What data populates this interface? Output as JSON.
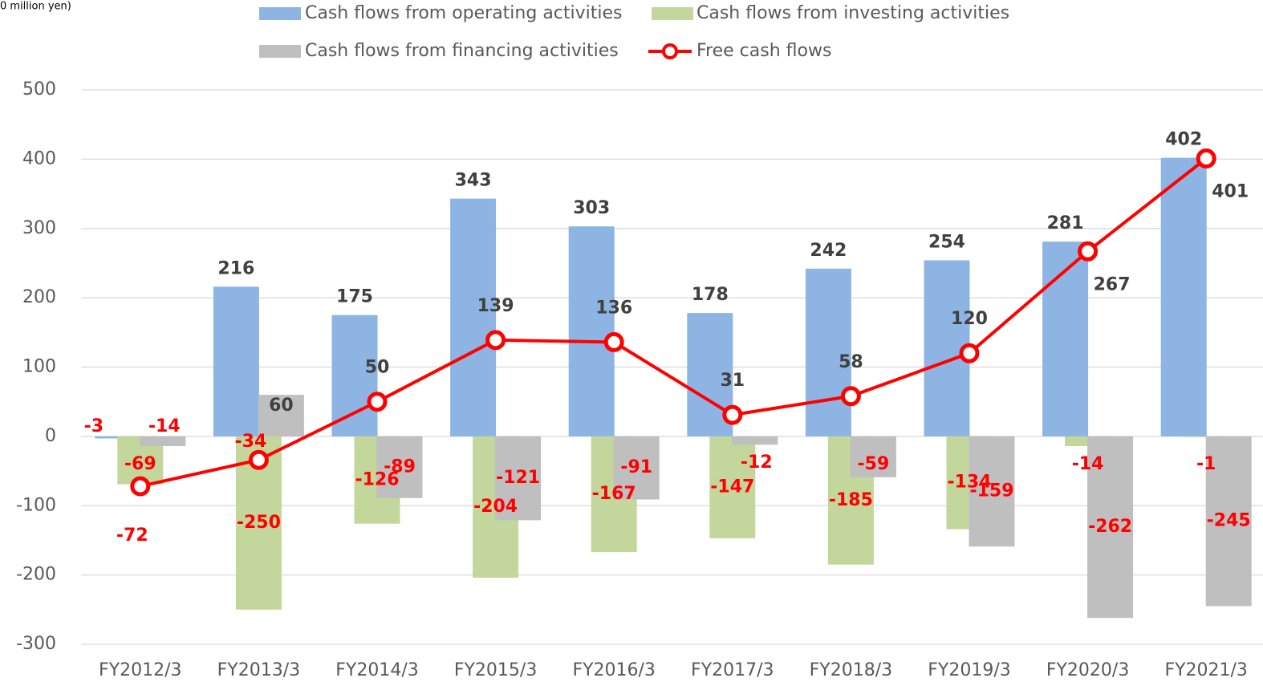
{
  "chart_data": {
    "type": "bar",
    "unit_label": "0 million yen)",
    "categories": [
      "FY2012/3",
      "FY2013/3",
      "FY2014/3",
      "FY2015/3",
      "FY2016/3",
      "FY2017/3",
      "FY2018/3",
      "FY2019/3",
      "FY2020/3",
      "FY2021/3"
    ],
    "series": [
      {
        "name": "Cash flows from operating activities",
        "color": "#8eb4e3",
        "type": "bar",
        "values": [
          -3,
          216,
          175,
          343,
          303,
          178,
          242,
          254,
          281,
          402
        ]
      },
      {
        "name": "Cash flows from investing activities",
        "color": "#c3d69b",
        "type": "bar",
        "values": [
          -69,
          -250,
          -126,
          -204,
          -167,
          -147,
          -185,
          -134,
          -14,
          -1
        ]
      },
      {
        "name": "Cash flows from financing activities",
        "color": "#bfbfbf",
        "type": "bar",
        "values": [
          -14,
          60,
          -89,
          -121,
          -91,
          -12,
          -59,
          -159,
          -262,
          -245
        ]
      },
      {
        "name": "Free cash flows",
        "color": "#ff0000",
        "type": "line",
        "values": [
          -72,
          -34,
          50,
          139,
          136,
          31,
          58,
          120,
          267,
          401
        ]
      }
    ],
    "ylim": [
      -300,
      500
    ],
    "yticks": [
      -300,
      -200,
      -100,
      0,
      100,
      200,
      300,
      400,
      500
    ],
    "grid": true
  }
}
